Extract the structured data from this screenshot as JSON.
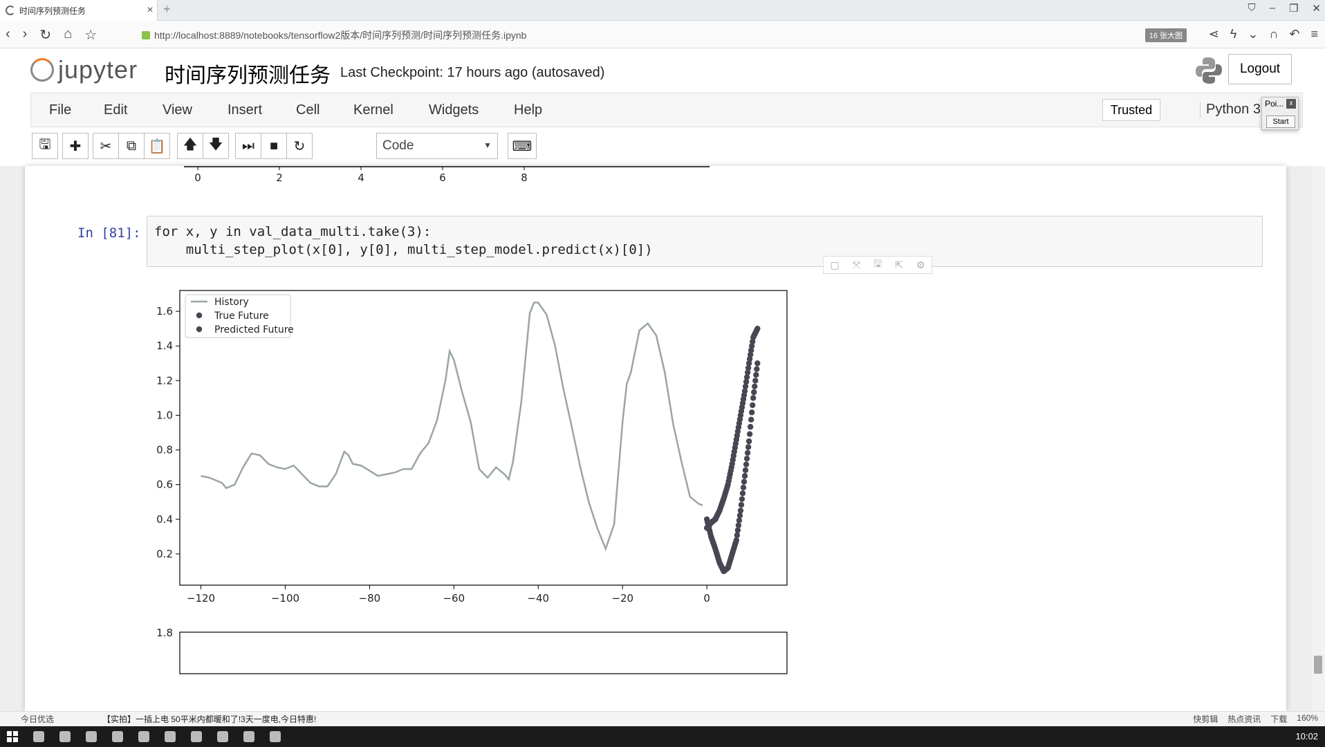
{
  "browser": {
    "tab_title": "时间序列预测任务",
    "url": "http://localhost:8889/notebooks/tensorflow2版本/时间序列预测/时间序列预测任务.ipynb",
    "url_badge": "16 张大图"
  },
  "header": {
    "logo_text": "jupyter",
    "notebook_title": "时间序列预测任务",
    "checkpoint": "Last Checkpoint: 17 hours ago (autosaved)",
    "logout_label": "Logout"
  },
  "menubar": {
    "items": [
      "File",
      "Edit",
      "View",
      "Insert",
      "Cell",
      "Kernel",
      "Widgets",
      "Help"
    ],
    "trusted": "Trusted",
    "kernel": "Python 3"
  },
  "toolbar": {
    "cell_type": "Code"
  },
  "popup": {
    "title": "Poi...",
    "close": "x",
    "start": "Start"
  },
  "prev_plot": {
    "ticks": [
      "0",
      "2",
      "4",
      "6",
      "8"
    ]
  },
  "cell": {
    "prompt": "In [81]:",
    "code_line1": "for x, y in val_data_multi.take(3):",
    "code_line2": "    multi_step_plot(x[0], y[0], multi_step_model.predict(x)[0])"
  },
  "chart_data": {
    "type": "line",
    "title": "",
    "xlabel": "",
    "ylabel": "",
    "xlim": [
      -125,
      19
    ],
    "ylim": [
      0.02,
      1.72
    ],
    "xticks": [
      -120,
      -100,
      -80,
      -60,
      -40,
      -20,
      0
    ],
    "yticks": [
      0.2,
      0.4,
      0.6,
      0.8,
      1.0,
      1.2,
      1.4,
      1.6
    ],
    "legend": "top-left",
    "colors": {
      "history": "#9aa5a2",
      "points": "#4a4552"
    },
    "series": [
      {
        "name": "History",
        "type": "line",
        "x": [
          -120,
          -118,
          -116,
          -115,
          -114,
          -112,
          -110,
          -108,
          -106,
          -104,
          -102,
          -100,
          -98,
          -96,
          -94,
          -92,
          -90,
          -88,
          -86,
          -85,
          -84,
          -82,
          -80,
          -78,
          -76,
          -74,
          -72,
          -70,
          -68,
          -66,
          -64,
          -62,
          -61,
          -60,
          -58,
          -56,
          -54,
          -52,
          -50,
          -48,
          -47,
          -46,
          -44,
          -42,
          -41,
          -40,
          -38,
          -36,
          -34,
          -32,
          -30,
          -28,
          -26,
          -24,
          -22,
          -20,
          -19,
          -18,
          -16,
          -14,
          -12,
          -10,
          -8,
          -6,
          -4,
          -2,
          -1
        ],
        "y": [
          0.65,
          0.64,
          0.62,
          0.61,
          0.58,
          0.6,
          0.7,
          0.78,
          0.77,
          0.72,
          0.7,
          0.69,
          0.71,
          0.66,
          0.61,
          0.59,
          0.59,
          0.66,
          0.79,
          0.77,
          0.72,
          0.71,
          0.68,
          0.65,
          0.66,
          0.67,
          0.69,
          0.69,
          0.78,
          0.84,
          0.97,
          1.2,
          1.37,
          1.32,
          1.13,
          0.96,
          0.69,
          0.64,
          0.7,
          0.66,
          0.63,
          0.73,
          1.08,
          1.59,
          1.65,
          1.65,
          1.58,
          1.4,
          1.15,
          0.93,
          0.7,
          0.5,
          0.35,
          0.23,
          0.37,
          0.96,
          1.18,
          1.25,
          1.49,
          1.53,
          1.46,
          1.25,
          0.95,
          0.73,
          0.53,
          0.49,
          0.48
        ]
      },
      {
        "name": "True Future",
        "type": "scatter",
        "x": [
          0,
          1,
          2,
          3,
          4,
          5,
          6,
          7,
          8,
          9,
          10,
          11,
          12
        ],
        "y": [
          0.4,
          0.3,
          0.23,
          0.15,
          0.1,
          0.12,
          0.2,
          0.28,
          0.45,
          0.65,
          0.85,
          1.1,
          1.3
        ]
      },
      {
        "name": "Predicted Future",
        "type": "scatter",
        "x": [
          0,
          1,
          2,
          3,
          4,
          5,
          6,
          7,
          8,
          9,
          10,
          11,
          12
        ],
        "y": [
          0.35,
          0.38,
          0.4,
          0.45,
          0.52,
          0.6,
          0.72,
          0.86,
          1.0,
          1.14,
          1.3,
          1.45,
          1.5
        ]
      }
    ]
  },
  "next_plot": {
    "ytick": "1.8"
  },
  "statusbar": {
    "left": "今日优选",
    "news": "【实拍】一插上电 50平米内都暖和了!3天一度电,今日特惠!",
    "right": [
      "快剪辑",
      "热点资讯",
      "下载",
      "160%"
    ]
  },
  "taskbar": {
    "time": "10:02"
  }
}
